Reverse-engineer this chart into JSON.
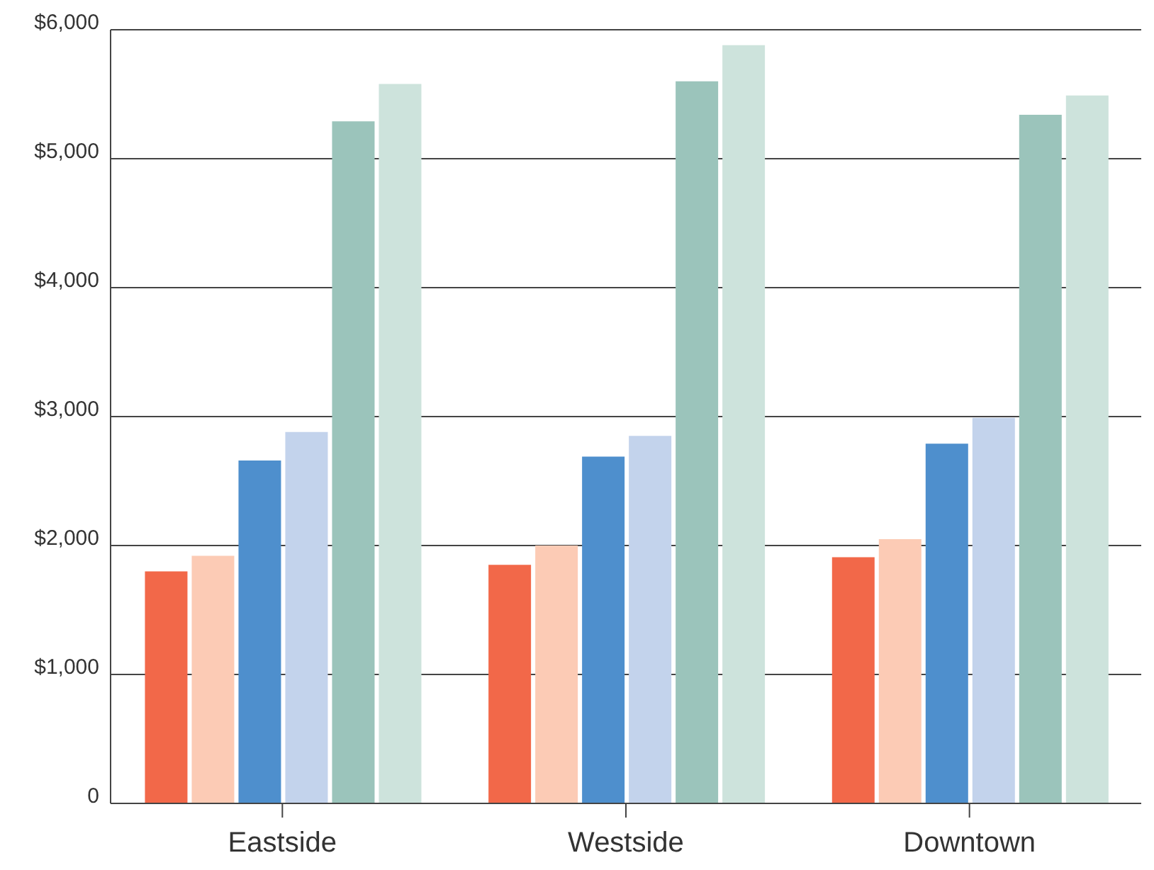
{
  "chart_data": {
    "type": "bar",
    "categories": [
      "Eastside",
      "Westside",
      "Downtown"
    ],
    "series": [
      {
        "color": "#f26849",
        "values": [
          1800,
          1850,
          1910
        ]
      },
      {
        "color": "#fccbb5",
        "values": [
          1920,
          2000,
          2050
        ]
      },
      {
        "color": "#4e8fcd",
        "values": [
          2660,
          2690,
          2790
        ]
      },
      {
        "color": "#c3d3ec",
        "values": [
          2880,
          2850,
          2990
        ]
      },
      {
        "color": "#9bc4bb",
        "values": [
          5290,
          5600,
          5340
        ]
      },
      {
        "color": "#cde3dc",
        "values": [
          5580,
          5880,
          5490
        ]
      }
    ],
    "ylim": [
      0,
      6000
    ],
    "yticks": [
      {
        "value": 0,
        "label": "0"
      },
      {
        "value": 1000,
        "label": "$1,000"
      },
      {
        "value": 2000,
        "label": "$2,000"
      },
      {
        "value": 3000,
        "label": "$3,000"
      },
      {
        "value": 4000,
        "label": "$4,000"
      },
      {
        "value": 5000,
        "label": "$5,000"
      },
      {
        "value": 6000,
        "label": "$6,000"
      }
    ],
    "grid": "y",
    "legend": false
  }
}
